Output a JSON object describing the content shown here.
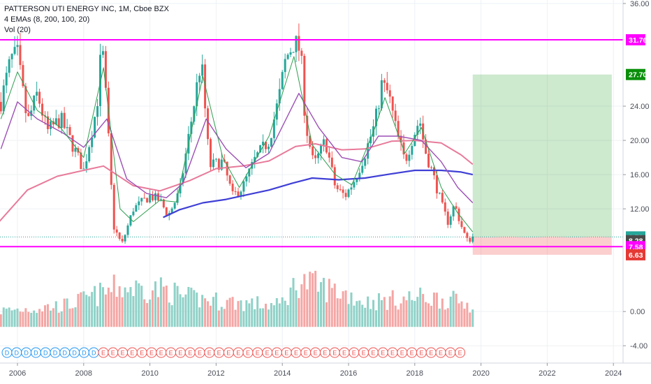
{
  "legend": {
    "title": "PATTERSON UTI ENERGY INC, 1M, Cboe BZX",
    "emas": "4 EMAs (8, 200, 100, 20)",
    "vol": "Vol (20)"
  },
  "chart_data": {
    "type": "candlestick",
    "symbol": "PATTERSON UTI ENERGY INC",
    "interval": "1M",
    "exchange": "Cboe BZX",
    "y_ticks": [
      "36.00",
      "24.00",
      "20.00",
      "16.00",
      "12.00",
      "0.00",
      "-4.00"
    ],
    "x_ticks": [
      "2006",
      "2008",
      "2010",
      "2012",
      "2014",
      "2016",
      "2018",
      "2020",
      "2022",
      "2024"
    ],
    "ylim": [
      -4.8,
      36.0
    ],
    "xlim": [
      2005.45,
      2024.55
    ],
    "price_tags": [
      {
        "label": "31.76",
        "value": 31.76,
        "bg": "#ff00ff",
        "fg": "#ffffff"
      },
      {
        "label": "27.70",
        "value": 27.7,
        "bg": "#0a8f0a",
        "fg": "#ffffff"
      },
      {
        "label": "8.72",
        "value": 8.72,
        "bg": "#26a69a",
        "fg": "#ffffff"
      },
      {
        "label": "8.28",
        "value": 8.28,
        "bg": "#4a4a4a",
        "fg": "#ffffff"
      },
      {
        "label": "7.58",
        "value": 7.58,
        "bg": "#ff00ff",
        "fg": "#ffffff"
      },
      {
        "label": "6.63",
        "value": 6.63,
        "bg": "#e53935",
        "fg": "#ffffff"
      }
    ],
    "horizontal_lines": [
      {
        "value": 31.76,
        "color": "#ff00ff"
      },
      {
        "value": 7.58,
        "color": "#ff00ff"
      }
    ],
    "long_position": {
      "x_start": 2019.75,
      "x_end": 2023.95,
      "entry": 8.72,
      "target": 27.7,
      "stop": 6.63
    },
    "price_path": [
      [
        2005.5,
        24.5
      ],
      [
        2005.8,
        29.5
      ],
      [
        2006.0,
        30.0
      ],
      [
        2006.3,
        22.0
      ],
      [
        2006.6,
        25.5
      ],
      [
        2006.9,
        21.0
      ],
      [
        2007.3,
        22.5
      ],
      [
        2007.6,
        20.0
      ],
      [
        2008.0,
        16.5
      ],
      [
        2008.4,
        24.0
      ],
      [
        2008.55,
        31.5
      ],
      [
        2008.7,
        23.5
      ],
      [
        2008.9,
        10.0
      ],
      [
        2009.15,
        7.8
      ],
      [
        2009.5,
        12.0
      ],
      [
        2010.0,
        13.5
      ],
      [
        2010.3,
        13.0
      ],
      [
        2010.55,
        11.2
      ],
      [
        2010.9,
        14.0
      ],
      [
        2011.3,
        23.5
      ],
      [
        2011.55,
        29.5
      ],
      [
        2011.8,
        17.0
      ],
      [
        2012.2,
        17.5
      ],
      [
        2012.5,
        13.5
      ],
      [
        2012.8,
        14.5
      ],
      [
        2013.2,
        18.0
      ],
      [
        2013.6,
        20.0
      ],
      [
        2013.9,
        25.0
      ],
      [
        2014.1,
        29.5
      ],
      [
        2014.35,
        31.5
      ],
      [
        2014.55,
        30.5
      ],
      [
        2014.7,
        22.0
      ],
      [
        2014.95,
        17.0
      ],
      [
        2015.3,
        20.0
      ],
      [
        2015.6,
        14.5
      ],
      [
        2015.9,
        13.5
      ],
      [
        2016.2,
        15.5
      ],
      [
        2016.5,
        18.5
      ],
      [
        2016.8,
        22.0
      ],
      [
        2017.0,
        26.5
      ],
      [
        2017.2,
        25.5
      ],
      [
        2017.45,
        21.0
      ],
      [
        2017.7,
        17.5
      ],
      [
        2017.95,
        20.5
      ],
      [
        2018.15,
        22.5
      ],
      [
        2018.3,
        19.0
      ],
      [
        2018.55,
        16.0
      ],
      [
        2018.85,
        12.0
      ],
      [
        2019.0,
        10.5
      ],
      [
        2019.2,
        12.5
      ],
      [
        2019.45,
        9.5
      ],
      [
        2019.6,
        8.2
      ],
      [
        2019.75,
        8.72
      ]
    ],
    "ema8_path": [
      [
        2005.5,
        22.5
      ],
      [
        2006.0,
        28.0
      ],
      [
        2006.6,
        23.5
      ],
      [
        2007.3,
        21.5
      ],
      [
        2008.0,
        18.0
      ],
      [
        2008.6,
        28.5
      ],
      [
        2009.1,
        12.0
      ],
      [
        2009.5,
        10.5
      ],
      [
        2010.3,
        13.0
      ],
      [
        2010.8,
        12.8
      ],
      [
        2011.6,
        27.5
      ],
      [
        2012.2,
        18.0
      ],
      [
        2012.7,
        14.5
      ],
      [
        2013.6,
        20.5
      ],
      [
        2014.35,
        29.8
      ],
      [
        2014.9,
        19.5
      ],
      [
        2015.6,
        16.0
      ],
      [
        2016.1,
        14.8
      ],
      [
        2016.8,
        21.5
      ],
      [
        2017.1,
        25.0
      ],
      [
        2017.7,
        18.5
      ],
      [
        2018.2,
        21.5
      ],
      [
        2018.8,
        14.5
      ],
      [
        2019.3,
        11.5
      ],
      [
        2019.75,
        9.3
      ]
    ],
    "ema20_path": [
      [
        2005.5,
        19.0
      ],
      [
        2006.0,
        24.5
      ],
      [
        2006.6,
        22.5
      ],
      [
        2007.4,
        20.8
      ],
      [
        2008.0,
        19.2
      ],
      [
        2008.7,
        22.5
      ],
      [
        2009.3,
        15.5
      ],
      [
        2009.9,
        13.8
      ],
      [
        2010.5,
        13.3
      ],
      [
        2011.0,
        15.0
      ],
      [
        2011.7,
        22.5
      ],
      [
        2012.3,
        19.0
      ],
      [
        2012.9,
        16.8
      ],
      [
        2013.6,
        18.5
      ],
      [
        2014.5,
        25.5
      ],
      [
        2015.1,
        21.5
      ],
      [
        2015.8,
        18.0
      ],
      [
        2016.4,
        17.5
      ],
      [
        2016.9,
        20.5
      ],
      [
        2017.5,
        20.5
      ],
      [
        2018.2,
        20.0
      ],
      [
        2018.8,
        17.5
      ],
      [
        2019.3,
        14.5
      ],
      [
        2019.75,
        12.7
      ]
    ],
    "ema100_path": [
      [
        2005.45,
        10.5
      ],
      [
        2006.3,
        14.2
      ],
      [
        2007.2,
        15.8
      ],
      [
        2008.0,
        16.5
      ],
      [
        2008.6,
        17.0
      ],
      [
        2009.5,
        14.7
      ],
      [
        2010.3,
        14.1
      ],
      [
        2011.2,
        15.3
      ],
      [
        2012.0,
        16.7
      ],
      [
        2012.8,
        17.0
      ],
      [
        2013.6,
        17.6
      ],
      [
        2014.4,
        19.3
      ],
      [
        2015.0,
        19.6
      ],
      [
        2015.8,
        18.9
      ],
      [
        2016.5,
        19.0
      ],
      [
        2017.3,
        19.9
      ],
      [
        2018.0,
        20.0
      ],
      [
        2018.8,
        19.7
      ],
      [
        2019.4,
        18.3
      ],
      [
        2019.75,
        17.2
      ]
    ],
    "ema200_path": [
      [
        2010.4,
        11.0
      ],
      [
        2010.9,
        11.9
      ],
      [
        2011.6,
        12.7
      ],
      [
        2012.3,
        13.1
      ],
      [
        2013.0,
        13.7
      ],
      [
        2013.6,
        14.2
      ],
      [
        2014.3,
        15.0
      ],
      [
        2014.9,
        15.6
      ],
      [
        2015.7,
        15.4
      ],
      [
        2016.5,
        15.6
      ],
      [
        2017.3,
        16.1
      ],
      [
        2018.0,
        16.5
      ],
      [
        2018.8,
        16.5
      ],
      [
        2019.4,
        16.3
      ],
      [
        2019.75,
        16.0
      ]
    ],
    "volume_base": -1.8,
    "volume_envelope": [
      [
        2005.5,
        0.8
      ],
      [
        2006.5,
        1.2
      ],
      [
        2007.5,
        1.7
      ],
      [
        2008.5,
        3.5
      ],
      [
        2009.0,
        4.5
      ],
      [
        2009.6,
        4.4
      ],
      [
        2010.5,
        4.2
      ],
      [
        2011.0,
        3.0
      ],
      [
        2012.0,
        2.4
      ],
      [
        2013.0,
        2.0
      ],
      [
        2013.9,
        1.6
      ],
      [
        2014.5,
        5.6
      ],
      [
        2014.9,
        5.0
      ],
      [
        2015.5,
        4.2
      ],
      [
        2016.0,
        3.4
      ],
      [
        2016.5,
        2.2
      ],
      [
        2017.5,
        2.6
      ],
      [
        2018.3,
        3.0
      ],
      [
        2019.0,
        2.6
      ],
      [
        2019.75,
        1.8
      ]
    ],
    "earnings_markers": [
      "D",
      "D",
      "D",
      "D",
      "D",
      "D",
      "D",
      "D",
      "D",
      "D",
      "E",
      "E",
      "E",
      "E",
      "E",
      "E",
      "E",
      "E",
      "E",
      "E",
      "E",
      "E",
      "E",
      "E",
      "E",
      "E",
      "E",
      "E",
      "E",
      "E",
      "E",
      "E",
      "E",
      "E",
      "E",
      "E",
      "E",
      "E",
      "E",
      "E",
      "E",
      "E",
      "E",
      "E",
      "E",
      "E",
      "E",
      "E"
    ]
  },
  "colors": {
    "up": "#26a69a",
    "down": "#ef5350",
    "vol_up": "#8fd1c7",
    "vol_down": "#f4a6a4",
    "ema8": "#2e9e4f",
    "ema20": "#9c4fb5",
    "ema100": "#e87a9a",
    "ema200": "#3f3fd6",
    "magenta": "#ff00ff",
    "grid": "#eef0f4",
    "target_fill": "rgba(76,175,80,0.28)",
    "stop_fill": "rgba(239,83,80,0.28)"
  }
}
